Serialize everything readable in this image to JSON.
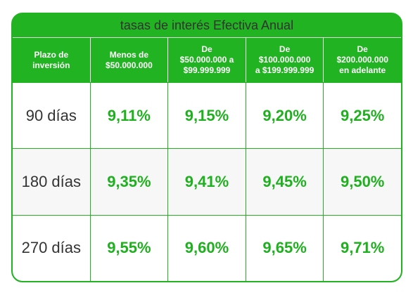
{
  "title": "tasas de interés Efectiva Anual",
  "table": {
    "header": [
      "Plazo de\ninversión",
      "Menos de\n$50.000.000",
      "De\n$50.000.000 a\n$99.999.999",
      "De\n$100.000.000\na $199.999.999",
      "De\n$200.000.000\nen adelante"
    ],
    "rows": [
      [
        "90 días",
        "9,11%",
        "9,15%",
        "9,20%",
        "9,25%"
      ],
      [
        "180 días",
        "9,35%",
        "9,41%",
        "9,45%",
        "9,50%"
      ],
      [
        "270 días",
        "9,55%",
        "9,60%",
        "9,65%",
        "9,71%"
      ]
    ]
  }
}
